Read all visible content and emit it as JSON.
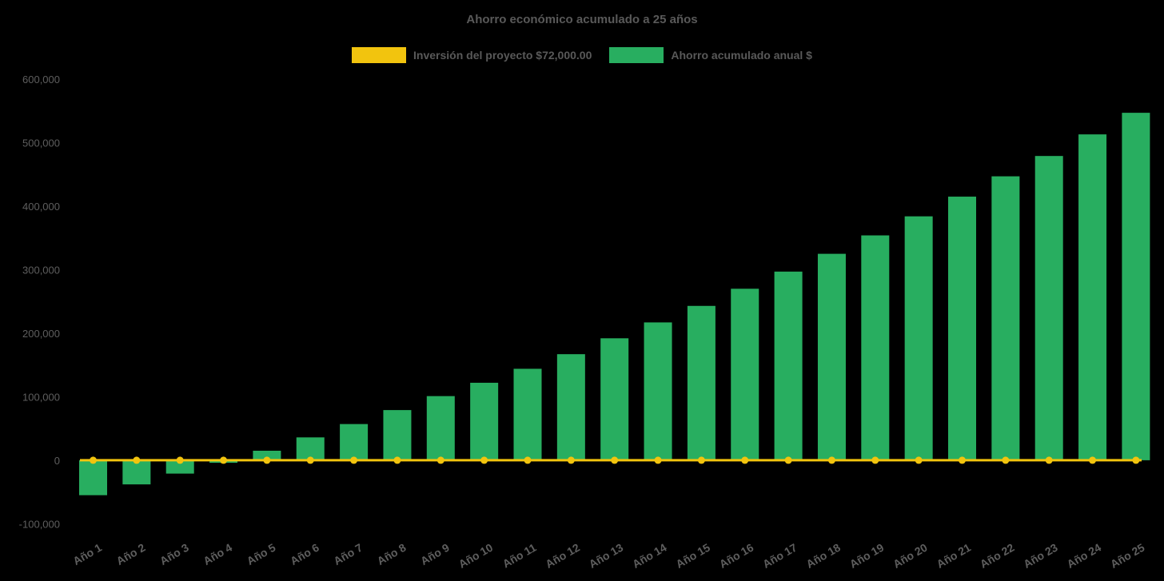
{
  "title": "Ahorro económico acumulado a 25 años",
  "legend": {
    "items": [
      {
        "id": "investment",
        "label": "Inversión del proyecto $72,000.00",
        "color": "#F2C40E"
      },
      {
        "id": "savings",
        "label": "Ahorro acumulado anual $",
        "color": "#28AE60"
      }
    ]
  },
  "chart_data": {
    "type": "bar",
    "title": "Ahorro económico acumulado a 25 años",
    "categories": [
      "Año 1",
      "Año 2",
      "Año 3",
      "Año 4",
      "Año 5",
      "Año 6",
      "Año 7",
      "Año 8",
      "Año 9",
      "Año 10",
      "Año 11",
      "Año 12",
      "Año 13",
      "Año 14",
      "Año 15",
      "Año 16",
      "Año 17",
      "Año 18",
      "Año 19",
      "Año 20",
      "Año 21",
      "Año 22",
      "Año 23",
      "Año 24",
      "Año 25"
    ],
    "series": [
      {
        "name": "Ahorro acumulado anual $",
        "type": "bar",
        "color": "#28AE60",
        "values": [
          -55000,
          -38000,
          -21000,
          -4000,
          15000,
          36000,
          57000,
          79000,
          101000,
          122000,
          144000,
          167000,
          192000,
          217000,
          243000,
          270000,
          297000,
          325000,
          354000,
          384000,
          415000,
          447000,
          479000,
          513000,
          547000
        ]
      },
      {
        "name": "Inversión del proyecto $72,000.00",
        "type": "line",
        "color": "#F2C40E",
        "values": [
          0,
          0,
          0,
          0,
          0,
          0,
          0,
          0,
          0,
          0,
          0,
          0,
          0,
          0,
          0,
          0,
          0,
          0,
          0,
          0,
          0,
          0,
          0,
          0,
          0
        ]
      }
    ],
    "ylim": [
      -100000,
      600000
    ],
    "ytick_step": 100000,
    "ytick_labels": [
      "-100,000",
      "0",
      "100,000",
      "200,000",
      "300,000",
      "400,000",
      "500,000",
      "600,000"
    ],
    "grid": false,
    "legend_position": "top",
    "background": "#000000",
    "text_color": "#5e5e5e"
  }
}
